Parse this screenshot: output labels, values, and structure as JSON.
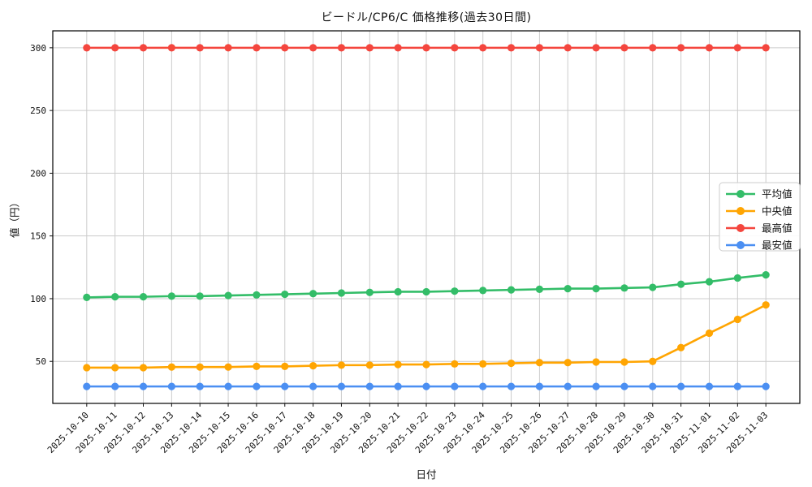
{
  "chart_data": {
    "type": "line",
    "title": "ビードル/CP6/C 価格推移(過去30日間)",
    "xlabel": "日付",
    "ylabel": "値（円）",
    "x": [
      "2025-10-10",
      "2025-10-11",
      "2025-10-12",
      "2025-10-13",
      "2025-10-14",
      "2025-10-15",
      "2025-10-16",
      "2025-10-17",
      "2025-10-18",
      "2025-10-19",
      "2025-10-20",
      "2025-10-21",
      "2025-10-22",
      "2025-10-23",
      "2025-10-24",
      "2025-10-25",
      "2025-10-26",
      "2025-10-27",
      "2025-10-28",
      "2025-10-29",
      "2025-10-30",
      "2025-10-31",
      "2025-11-01",
      "2025-11-02",
      "2025-11-03"
    ],
    "series": [
      {
        "id": "average",
        "name": "平均値",
        "color": "#33bd68",
        "values": [
          101,
          101.5,
          101.5,
          102,
          102,
          102.5,
          103,
          103.5,
          104,
          104.5,
          105,
          105.5,
          105.5,
          106,
          106.5,
          107,
          107.5,
          108,
          108,
          108.5,
          109,
          111.5,
          113.5,
          116.5,
          119
        ]
      },
      {
        "id": "median",
        "name": "中央値",
        "color": "#ffa502",
        "values": [
          45,
          45,
          45,
          45.5,
          45.5,
          45.5,
          46,
          46,
          46.5,
          47,
          47,
          47.5,
          47.5,
          48,
          48,
          48.5,
          49,
          49,
          49.5,
          49.5,
          50,
          61,
          72.5,
          83.5,
          95
        ]
      },
      {
        "id": "max",
        "name": "最高値",
        "color": "#f4463e",
        "values": [
          300,
          300,
          300,
          300,
          300,
          300,
          300,
          300,
          300,
          300,
          300,
          300,
          300,
          300,
          300,
          300,
          300,
          300,
          300,
          300,
          300,
          300,
          300,
          300,
          300
        ]
      },
      {
        "id": "min",
        "name": "最安値",
        "color": "#4b8ff2",
        "values": [
          30,
          30,
          30,
          30,
          30,
          30,
          30,
          30,
          30,
          30,
          30,
          30,
          30,
          30,
          30,
          30,
          30,
          30,
          30,
          30,
          30,
          30,
          30,
          30,
          30
        ]
      }
    ],
    "ylim": [
      16.5,
      313.5
    ],
    "yticks": [
      50,
      100,
      150,
      200,
      250,
      300
    ],
    "x_tick_rotation": 45,
    "grid": true,
    "grid_color": "#cccccc",
    "spine_color": "#000000",
    "legend_position": "right"
  }
}
